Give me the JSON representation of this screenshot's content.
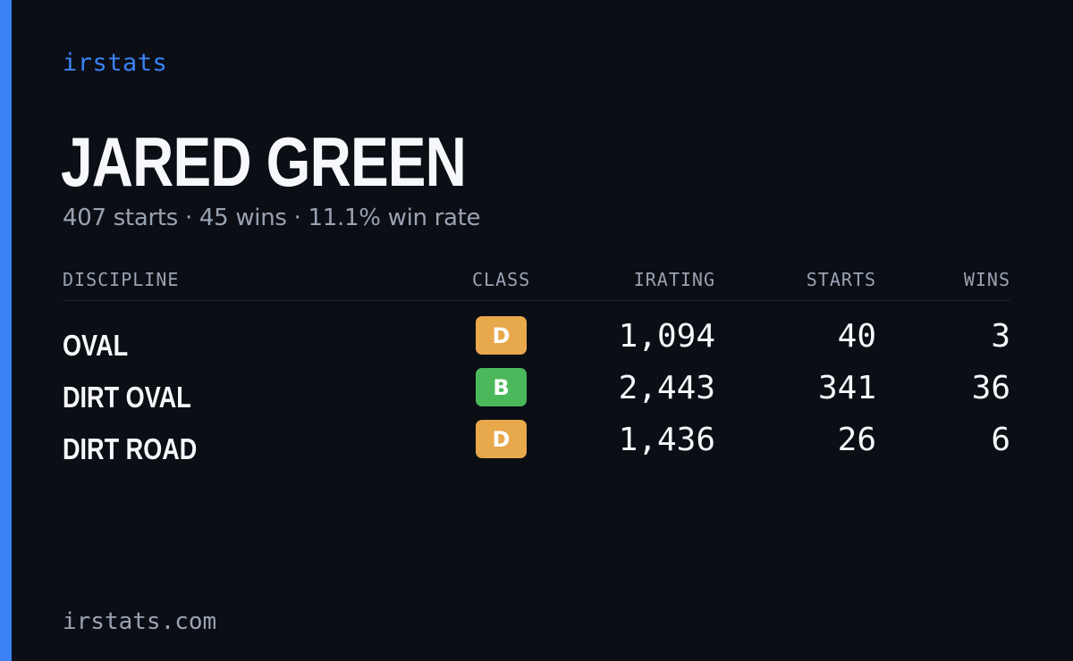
{
  "brand": "irstats",
  "driver": {
    "name": "JARED GREEN",
    "summary": "407 starts · 45 wins · 11.1% win rate"
  },
  "table": {
    "headers": {
      "discipline": "DISCIPLINE",
      "class": "CLASS",
      "irating": "IRATING",
      "starts": "STARTS",
      "wins": "WINS"
    },
    "rows": [
      {
        "discipline": "OVAL",
        "class": "D",
        "class_color": "#e8a84c",
        "irating": "1,094",
        "starts": "40",
        "wins": "3"
      },
      {
        "discipline": "DIRT OVAL",
        "class": "B",
        "class_color": "#4cb85c",
        "irating": "2,443",
        "starts": "341",
        "wins": "36"
      },
      {
        "discipline": "DIRT ROAD",
        "class": "D",
        "class_color": "#e8a84c",
        "irating": "1,436",
        "starts": "26",
        "wins": "6"
      }
    ]
  },
  "footer": "irstats.com",
  "colors": {
    "accent": "#3b82f6",
    "background": "#0b0e15",
    "muted_text": "#9aa3b2"
  }
}
